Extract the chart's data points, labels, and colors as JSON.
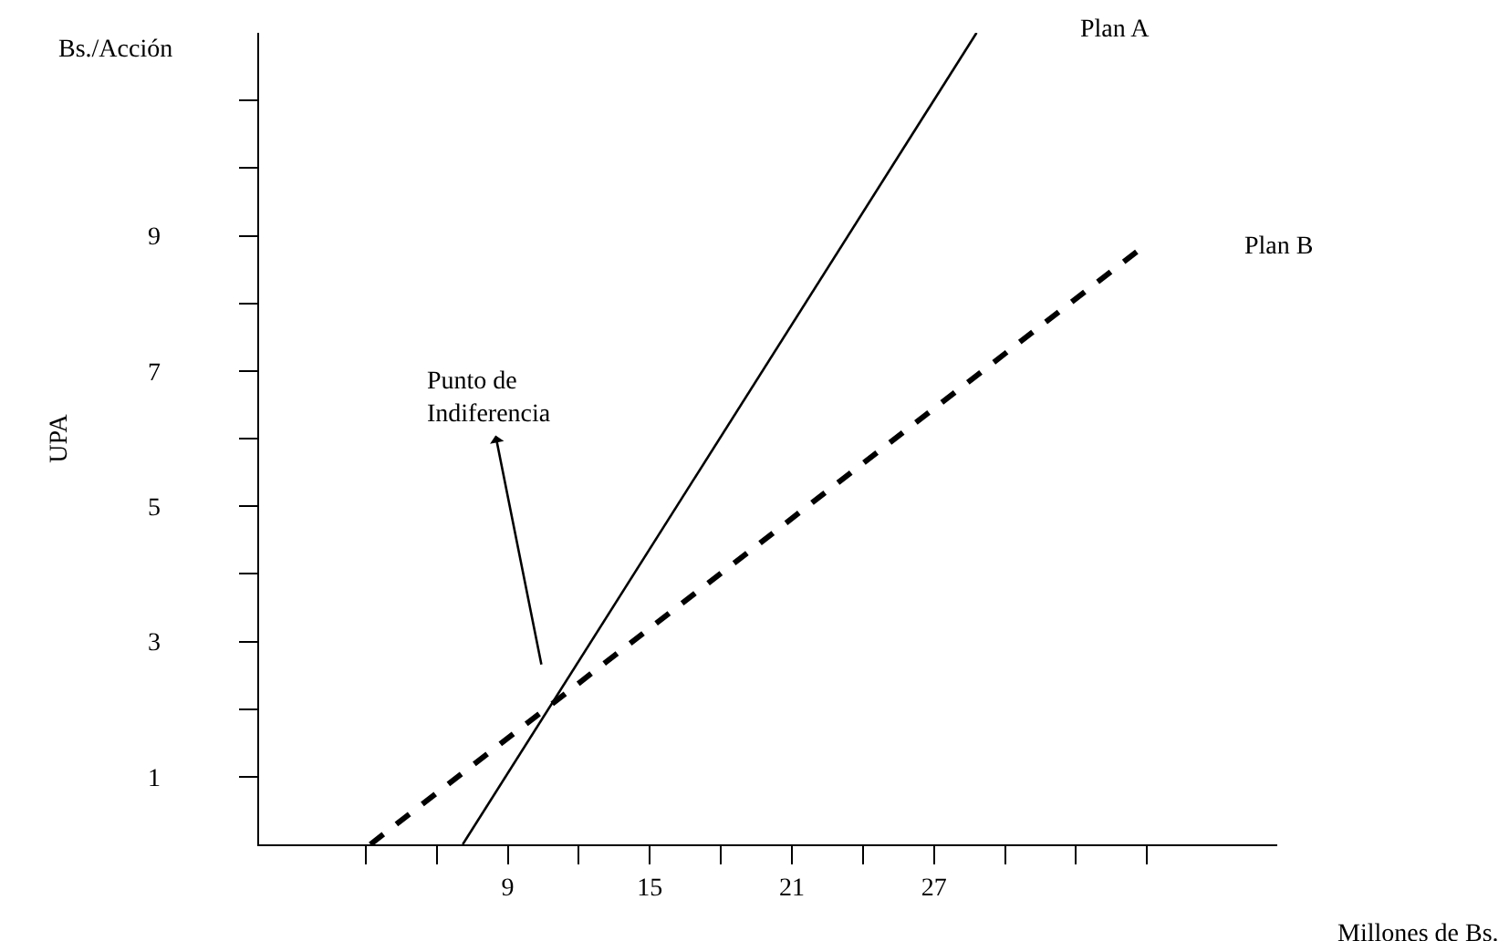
{
  "chart_data": {
    "type": "line",
    "xlabel": "Millones de Bs.",
    "ylabel": "UPA",
    "annotations": [
      "Bs./Acción",
      {
        "text": "Punto de Indiferencia",
        "x": 10.8,
        "y": 2.0
      }
    ],
    "series": [
      {
        "name": "Plan A",
        "color": "#000000",
        "line_style": "solid",
        "x": [
          7.1,
          28.8
        ],
        "values": [
          0,
          12
        ]
      },
      {
        "name": "Plan B",
        "color": "#000000",
        "line_style": "dashed",
        "x": [
          3.2,
          35.7
        ],
        "values": [
          0,
          8.8
        ]
      }
    ],
    "xlim": [
      -1.5,
      41.5
    ],
    "ylim": [
      0,
      12
    ],
    "xticks": [
      {
        "value": 3,
        "label": null
      },
      {
        "value": 6,
        "label": null
      },
      9,
      {
        "value": 12,
        "label": null
      },
      15,
      {
        "value": 18,
        "label": null
      },
      21,
      {
        "value": 24,
        "label": null
      },
      27,
      {
        "value": 30,
        "label": null
      },
      {
        "value": 33,
        "label": null
      },
      {
        "value": 36,
        "label": null
      }
    ],
    "yticks": [
      1,
      {
        "value": 2,
        "label": null
      },
      3,
      {
        "value": 4,
        "label": null
      },
      5,
      {
        "value": 6,
        "label": null
      },
      7,
      {
        "value": 8,
        "label": null
      },
      9,
      {
        "value": 10,
        "label": null
      },
      {
        "value": 11,
        "label": null
      }
    ],
    "grid": false,
    "legend": false,
    "marker": "none"
  }
}
